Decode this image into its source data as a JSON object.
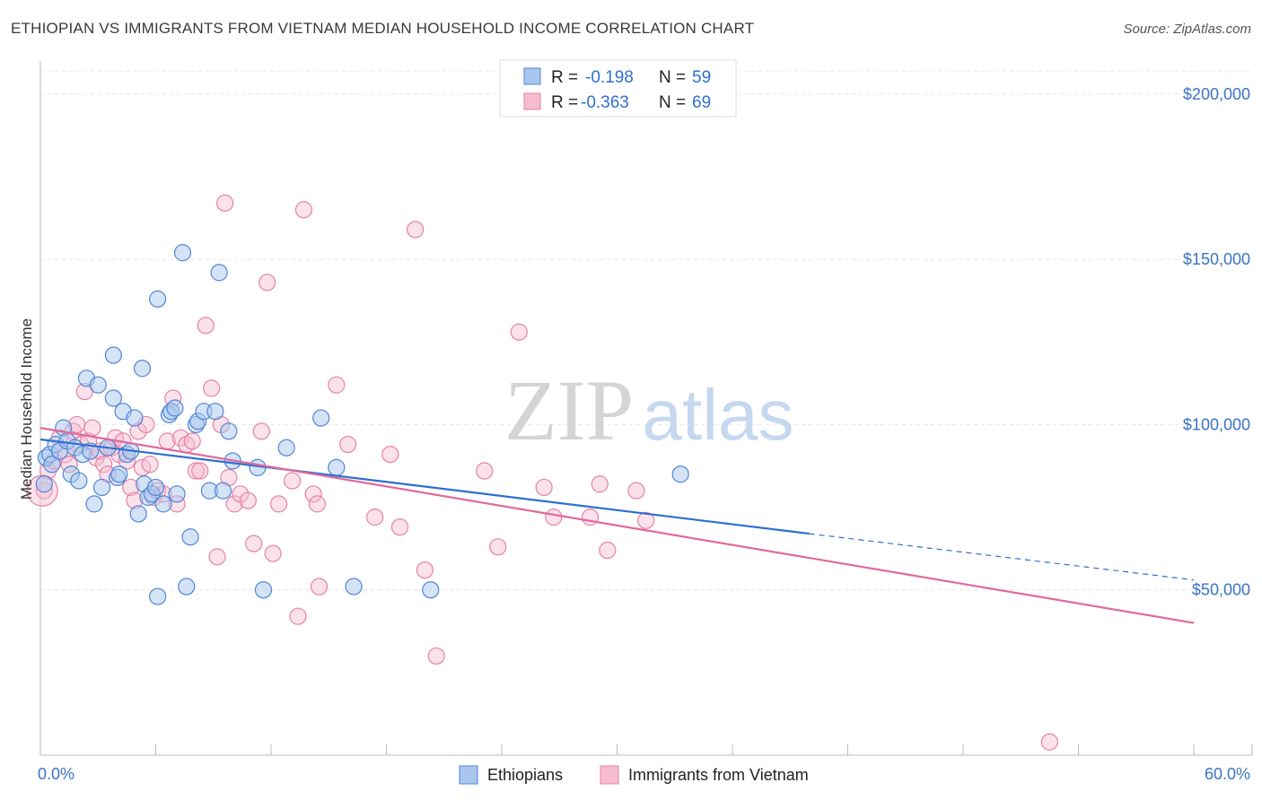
{
  "title": "ETHIOPIAN VS IMMIGRANTS FROM VIETNAM MEDIAN HOUSEHOLD INCOME CORRELATION CHART",
  "source": "Source: ZipAtlas.com",
  "watermark": {
    "zip": "ZIP",
    "atlas": "atlas"
  },
  "colors": {
    "blue_fill": "#a9c7ee",
    "blue_stroke": "#4f86d6",
    "blue_line": "#2d6fd1",
    "pink_fill": "#f6bcd0",
    "pink_stroke": "#e582a6",
    "pink_line": "#e0699a",
    "grid": "#e6e6e6",
    "tick_label": "#3b73c4"
  },
  "legend": {
    "rows": [
      {
        "r_label": "R =",
        "r_value": "-0.198",
        "n_label": "N =",
        "n_value": "59"
      },
      {
        "r_label": "R =",
        "r_value": "-0.363",
        "n_label": "N =",
        "n_value": "69"
      }
    ]
  },
  "chart_data": {
    "type": "scatter",
    "title": "ETHIOPIAN VS IMMIGRANTS FROM VIETNAM MEDIAN HOUSEHOLD INCOME CORRELATION CHART",
    "xlabel": "",
    "ylabel": "Median Household Income",
    "xlim": [
      0,
      60
    ],
    "ylim": [
      0,
      210000
    ],
    "x_tick_labels": [
      "0.0%",
      "60.0%"
    ],
    "y_ticks": [
      50000,
      100000,
      150000,
      200000
    ],
    "y_tick_labels": [
      "$50,000",
      "$100,000",
      "$150,000",
      "$200,000"
    ],
    "grid": true,
    "legend_position": "top-center",
    "series": [
      {
        "name": "Ethiopians",
        "color": "#a9c7ee",
        "r": -0.198,
        "n": 59,
        "trend": {
          "x0": 0,
          "y0": 95500,
          "x1": 40,
          "y1": 67000,
          "dash_x1": 60,
          "dash_y1": 53000
        },
        "points": [
          [
            0.2,
            82000
          ],
          [
            0.3,
            90000
          ],
          [
            0.5,
            91000
          ],
          [
            0.6,
            88000
          ],
          [
            0.8,
            94000
          ],
          [
            1.0,
            92000
          ],
          [
            1.2,
            99000
          ],
          [
            1.4,
            95000
          ],
          [
            1.6,
            85000
          ],
          [
            1.8,
            93000
          ],
          [
            2.0,
            83000
          ],
          [
            2.2,
            91000
          ],
          [
            2.4,
            114000
          ],
          [
            2.6,
            92000
          ],
          [
            2.8,
            76000
          ],
          [
            3.0,
            112000
          ],
          [
            3.2,
            81000
          ],
          [
            3.5,
            93000
          ],
          [
            3.8,
            108000
          ],
          [
            4.0,
            84000
          ],
          [
            3.8,
            121000
          ],
          [
            4.1,
            85000
          ],
          [
            4.3,
            104000
          ],
          [
            4.5,
            91000
          ],
          [
            4.7,
            92000
          ],
          [
            4.9,
            102000
          ],
          [
            5.1,
            73000
          ],
          [
            5.3,
            117000
          ],
          [
            5.4,
            82000
          ],
          [
            5.6,
            78000
          ],
          [
            5.8,
            79000
          ],
          [
            6.0,
            81000
          ],
          [
            6.1,
            48000
          ],
          [
            6.1,
            138000
          ],
          [
            6.4,
            76000
          ],
          [
            6.7,
            103000
          ],
          [
            6.8,
            104000
          ],
          [
            7.0,
            105000
          ],
          [
            7.1,
            79000
          ],
          [
            7.4,
            152000
          ],
          [
            7.6,
            51000
          ],
          [
            7.8,
            66000
          ],
          [
            8.1,
            100000
          ],
          [
            8.2,
            101000
          ],
          [
            8.5,
            104000
          ],
          [
            8.8,
            80000
          ],
          [
            9.1,
            104000
          ],
          [
            9.3,
            146000
          ],
          [
            9.5,
            80000
          ],
          [
            9.8,
            98000
          ],
          [
            10.0,
            89000
          ],
          [
            11.3,
            87000
          ],
          [
            11.6,
            50000
          ],
          [
            12.8,
            93000
          ],
          [
            14.6,
            102000
          ],
          [
            15.4,
            87000
          ],
          [
            16.3,
            51000
          ],
          [
            20.3,
            50000
          ],
          [
            33.3,
            85000
          ]
        ]
      },
      {
        "name": "Immigrants from Vietnam",
        "color": "#f6bcd0",
        "r": -0.363,
        "n": 69,
        "trend": {
          "x0": 0,
          "y0": 99000,
          "x1": 60,
          "y1": 40000
        },
        "points": [
          [
            0.2,
            80000
          ],
          [
            0.4,
            86000
          ],
          [
            0.7,
            89000
          ],
          [
            1.0,
            96000
          ],
          [
            1.3,
            91000
          ],
          [
            1.5,
            88000
          ],
          [
            1.7,
            98000
          ],
          [
            1.9,
            100000
          ],
          [
            2.1,
            94000
          ],
          [
            2.3,
            110000
          ],
          [
            2.5,
            95000
          ],
          [
            2.7,
            99000
          ],
          [
            2.9,
            90000
          ],
          [
            3.1,
            92000
          ],
          [
            3.3,
            88000
          ],
          [
            3.5,
            85000
          ],
          [
            3.7,
            93000
          ],
          [
            3.9,
            96000
          ],
          [
            4.1,
            91000
          ],
          [
            4.3,
            95000
          ],
          [
            4.5,
            89000
          ],
          [
            4.7,
            81000
          ],
          [
            4.9,
            77000
          ],
          [
            5.1,
            98000
          ],
          [
            5.3,
            87000
          ],
          [
            5.5,
            100000
          ],
          [
            5.7,
            88000
          ],
          [
            5.9,
            78000
          ],
          [
            6.1,
            80000
          ],
          [
            6.4,
            79000
          ],
          [
            6.6,
            95000
          ],
          [
            6.9,
            108000
          ],
          [
            7.1,
            76000
          ],
          [
            7.3,
            96000
          ],
          [
            7.6,
            94000
          ],
          [
            7.9,
            95000
          ],
          [
            8.1,
            86000
          ],
          [
            8.3,
            86000
          ],
          [
            8.6,
            130000
          ],
          [
            8.9,
            111000
          ],
          [
            9.2,
            60000
          ],
          [
            9.4,
            100000
          ],
          [
            9.6,
            167000
          ],
          [
            9.8,
            84000
          ],
          [
            10.1,
            76000
          ],
          [
            10.4,
            79000
          ],
          [
            10.8,
            77000
          ],
          [
            11.1,
            64000
          ],
          [
            11.5,
            98000
          ],
          [
            11.8,
            143000
          ],
          [
            12.1,
            61000
          ],
          [
            12.4,
            76000
          ],
          [
            13.1,
            83000
          ],
          [
            13.4,
            42000
          ],
          [
            13.7,
            165000
          ],
          [
            14.2,
            79000
          ],
          [
            14.4,
            76000
          ],
          [
            14.5,
            51000
          ],
          [
            15.4,
            112000
          ],
          [
            16.0,
            94000
          ],
          [
            17.4,
            72000
          ],
          [
            18.2,
            91000
          ],
          [
            18.7,
            69000
          ],
          [
            19.5,
            159000
          ],
          [
            20.0,
            56000
          ],
          [
            20.6,
            30000
          ],
          [
            23.1,
            86000
          ],
          [
            23.8,
            63000
          ],
          [
            24.9,
            128000
          ]
        ],
        "extra_points": [
          [
            26.2,
            81000
          ],
          [
            26.7,
            72000
          ],
          [
            28.6,
            72000
          ],
          [
            29.1,
            82000
          ],
          [
            29.5,
            62000
          ],
          [
            31.0,
            80000
          ],
          [
            31.5,
            71000
          ],
          [
            52.5,
            4000
          ]
        ]
      }
    ]
  },
  "bottom_legend": [
    {
      "label": "Ethiopians"
    },
    {
      "label": "Immigrants from Vietnam"
    }
  ]
}
